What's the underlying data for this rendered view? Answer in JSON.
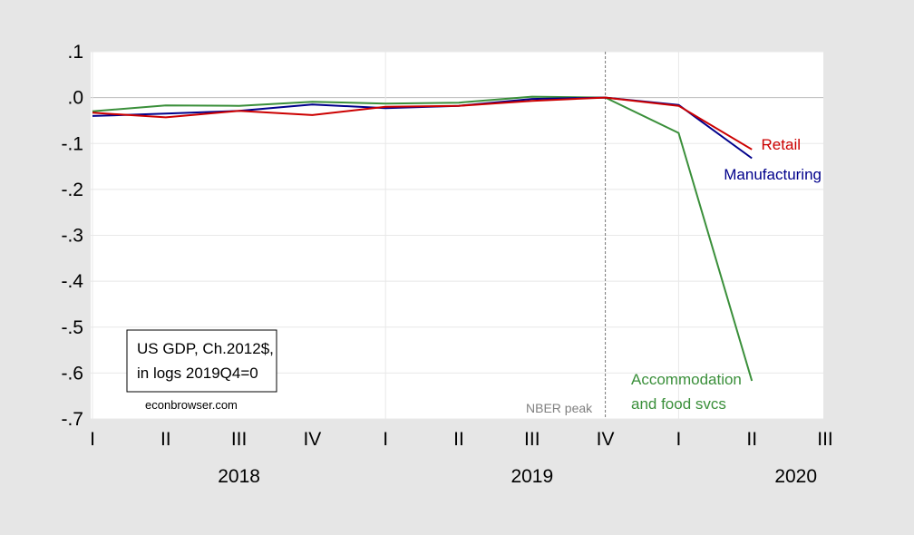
{
  "chart_data": {
    "type": "line",
    "x": [
      "2018Q1",
      "2018Q2",
      "2018Q3",
      "2018Q4",
      "2019Q1",
      "2019Q2",
      "2019Q3",
      "2019Q4",
      "2020Q1",
      "2020Q2"
    ],
    "series": [
      {
        "name": "Retail",
        "color": "#cc0000",
        "values": [
          -0.033,
          -0.043,
          -0.029,
          -0.038,
          -0.02,
          -0.018,
          -0.007,
          0.0,
          -0.018,
          -0.113
        ]
      },
      {
        "name": "Manufacturing",
        "color": "#00008b",
        "values": [
          -0.04,
          -0.035,
          -0.029,
          -0.015,
          -0.023,
          -0.018,
          -0.003,
          0.0,
          -0.016,
          -0.132
        ]
      },
      {
        "name": "Accommodation and food svcs",
        "label_lines": [
          "Accommodation",
          "and food svcs"
        ],
        "color": "#3a8f3a",
        "values": [
          -0.03,
          -0.017,
          -0.018,
          -0.009,
          -0.013,
          -0.011,
          0.002,
          0.0,
          -0.077,
          -0.617
        ]
      }
    ],
    "x_tick_labels": [
      "I",
      "II",
      "III",
      "IV",
      "I",
      "II",
      "III",
      "IV",
      "I",
      "II",
      "III"
    ],
    "year_labels": [
      "2018",
      "2019",
      "2020"
    ],
    "y_ticks": [
      0.1,
      0.0,
      -0.1,
      -0.2,
      -0.3,
      -0.4,
      -0.5,
      -0.6,
      -0.7
    ],
    "y_tick_labels": [
      ".1",
      ".0",
      "-.1",
      "-.2",
      "-.3",
      "-.4",
      "-.5",
      "-.6",
      "-.7"
    ],
    "ylim": [
      -0.7,
      0.1
    ],
    "vline": {
      "at": "2019Q4",
      "label": "NBER peak"
    },
    "annotation_box": {
      "lines": [
        "US GDP, Ch.2012$,",
        "in logs 2019Q4=0"
      ]
    },
    "credit": "econbrowser.com",
    "grid": true
  }
}
